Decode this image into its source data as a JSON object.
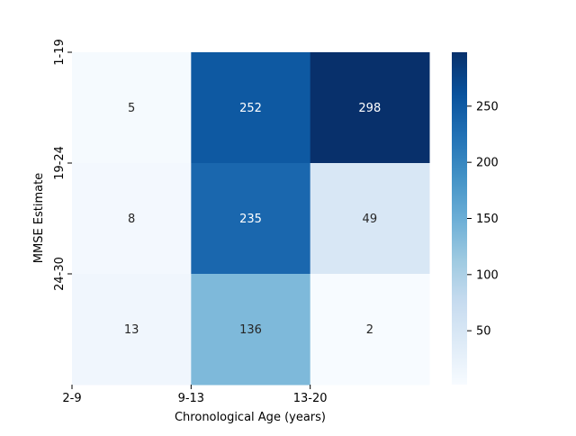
{
  "chart_data": {
    "type": "heatmap",
    "title": "",
    "xlabel": "Chronological Age (years)",
    "ylabel": "MMSE Estimate",
    "x_tick_labels": [
      "2-9",
      "9-13",
      "13-20"
    ],
    "y_tick_labels": [
      "1-19",
      "19-24",
      "24-30"
    ],
    "values": [
      [
        5,
        252,
        298
      ],
      [
        8,
        235,
        49
      ],
      [
        13,
        136,
        2
      ]
    ],
    "colormap": "Blues",
    "colorbar": {
      "min": 2,
      "max": 298,
      "ticks": [
        50,
        100,
        150,
        200,
        250
      ]
    },
    "colors": {
      "dark_text": "#262626",
      "light_text": "#ffffff"
    }
  }
}
